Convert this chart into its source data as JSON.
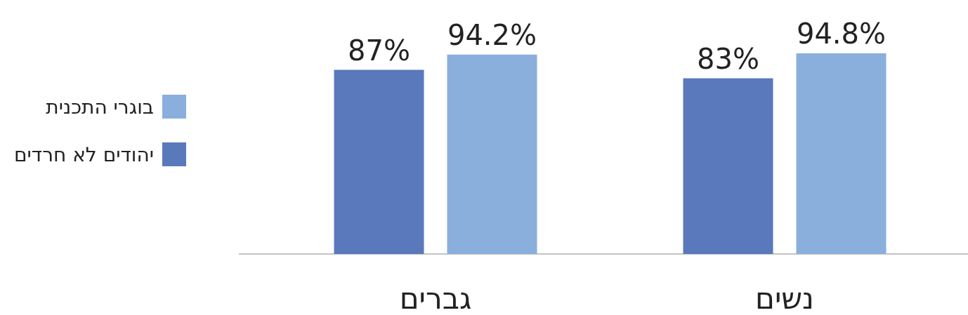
{
  "chart_data": {
    "type": "bar",
    "categories": [
      "גברים",
      "נשים"
    ],
    "series": [
      {
        "name": "יהודים לא חרדים",
        "color": "#5a78bc",
        "values": [
          87,
          83
        ],
        "value_labels": [
          "87%",
          "83%"
        ]
      },
      {
        "name": "בוגרי התכנית",
        "color": "#8aafdc",
        "values": [
          94.2,
          94.8
        ],
        "value_labels": [
          "94.2%",
          "94.8%"
        ]
      }
    ],
    "legend": "left"
  }
}
